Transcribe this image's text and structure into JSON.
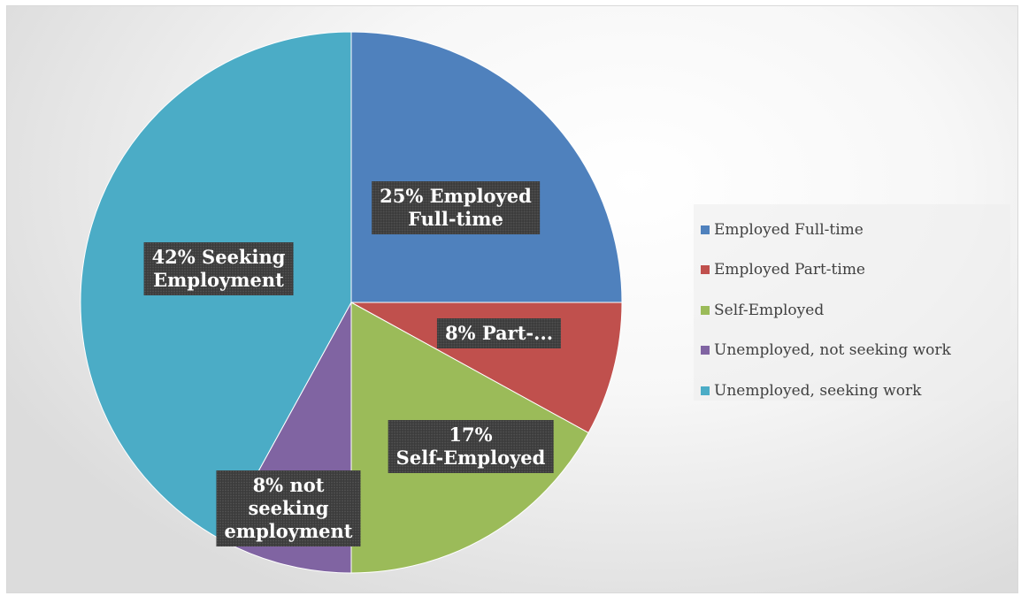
{
  "chart_data": {
    "type": "pie",
    "title": "",
    "start_angle_deg": 0,
    "direction": "clockwise",
    "slices": [
      {
        "name": "Employed Full-time",
        "value": 25,
        "color": "#4f81bd",
        "label_lines": [
          "25% Employed",
          "Full-time"
        ]
      },
      {
        "name": "Employed Part-time",
        "value": 8,
        "color": "#c0504d",
        "label_lines": [
          "8% Part-..."
        ]
      },
      {
        "name": "Self-Employed",
        "value": 17,
        "color": "#9bbb59",
        "label_lines": [
          "17%",
          "Self-Employed"
        ]
      },
      {
        "name": "Unemployed, not seeking work",
        "value": 8,
        "color": "#8064a2",
        "label_lines": [
          "8% not",
          "seeking",
          "employment"
        ]
      },
      {
        "name": "Unemployed, seeking work",
        "value": 42,
        "color": "#4bacc6",
        "label_lines": [
          "42% Seeking",
          "Employment"
        ]
      }
    ],
    "legend": {
      "position": "right",
      "entries": [
        "Employed Full-time",
        "Employed Part-time",
        "Self-Employed",
        "Unemployed, not seeking work",
        "Unemployed, seeking work"
      ]
    }
  }
}
